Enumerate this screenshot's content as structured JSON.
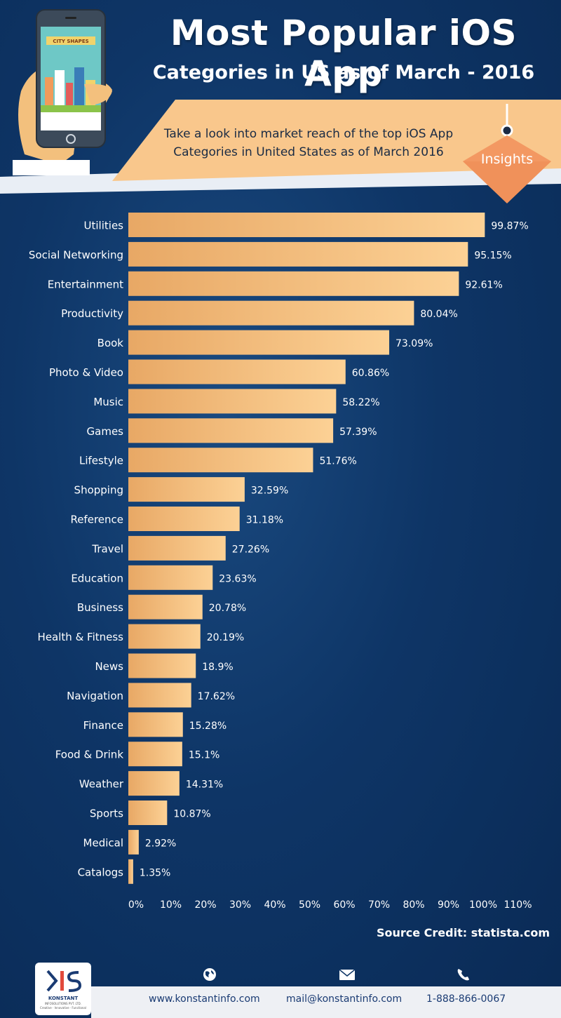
{
  "header": {
    "title_line1": "Most Popular iOS App",
    "title_line2": "Categories in US as of March - 2016",
    "subtitle_line1": "Take a look into market reach of the top iOS App",
    "subtitle_line2": "Categories in United States as of March 2016",
    "insights_label": "Insights",
    "phone_screen_label": "CITY SHAPES"
  },
  "colors": {
    "background": "#0e3566",
    "bar_start": "#e8a865",
    "bar_end": "#fcd195",
    "banner": "#f9c78c",
    "insights": "#f0915a"
  },
  "chart_data": {
    "type": "bar",
    "orientation": "horizontal",
    "categories": [
      "Utilities",
      "Social Networking",
      "Entertainment",
      "Productivity",
      "Book",
      "Photo & Video",
      "Music",
      "Games",
      "Lifestyle",
      "Shopping",
      "Reference",
      "Travel",
      "Education",
      "Business",
      "Health & Fitness",
      "News",
      "Navigation",
      "Finance",
      "Food & Drink",
      "Weather",
      "Sports",
      "Medical",
      "Catalogs"
    ],
    "values": [
      99.87,
      95.15,
      92.61,
      80.04,
      73.09,
      60.86,
      58.22,
      57.39,
      51.76,
      32.59,
      31.18,
      27.26,
      23.63,
      20.78,
      20.19,
      18.9,
      17.62,
      15.28,
      15.1,
      14.31,
      10.87,
      2.92,
      1.35
    ],
    "value_labels": [
      "99.87%",
      "95.15%",
      "92.61%",
      "80.04%",
      "73.09%",
      "60.86%",
      "58.22%",
      "57.39%",
      "51.76%",
      "32.59%",
      "31.18%",
      "27.26%",
      "23.63%",
      "20.78%",
      "20.19%",
      "18.9%",
      "17.62%",
      "15.28%",
      "15.1%",
      "14.31%",
      "10.87%",
      "2.92%",
      "1.35%"
    ],
    "xlim": [
      0,
      110
    ],
    "x_ticks": [
      "0%",
      "10%",
      "20%",
      "30%",
      "40%",
      "50%",
      "60%",
      "70%",
      "80%",
      "90%",
      "100%",
      "110%"
    ],
    "title": "Most Popular iOS App Categories in US as of March - 2016",
    "xlabel": "",
    "ylabel": "",
    "grid": false,
    "legend": "none"
  },
  "source_credit": "Source Credit: statista.com",
  "footer": {
    "logo_name": "KONSTANT",
    "logo_subname": "INFOSOLUTIONS PVT. LTD.",
    "logo_tagline": "Creative · Innovative · Functional",
    "website": "www.konstantinfo.com",
    "email": "mail@konstantinfo.com",
    "phone": "1-888-866-0067",
    "website_icon": "globe-icon",
    "email_icon": "envelope-icon",
    "phone_icon": "phone-icon"
  }
}
